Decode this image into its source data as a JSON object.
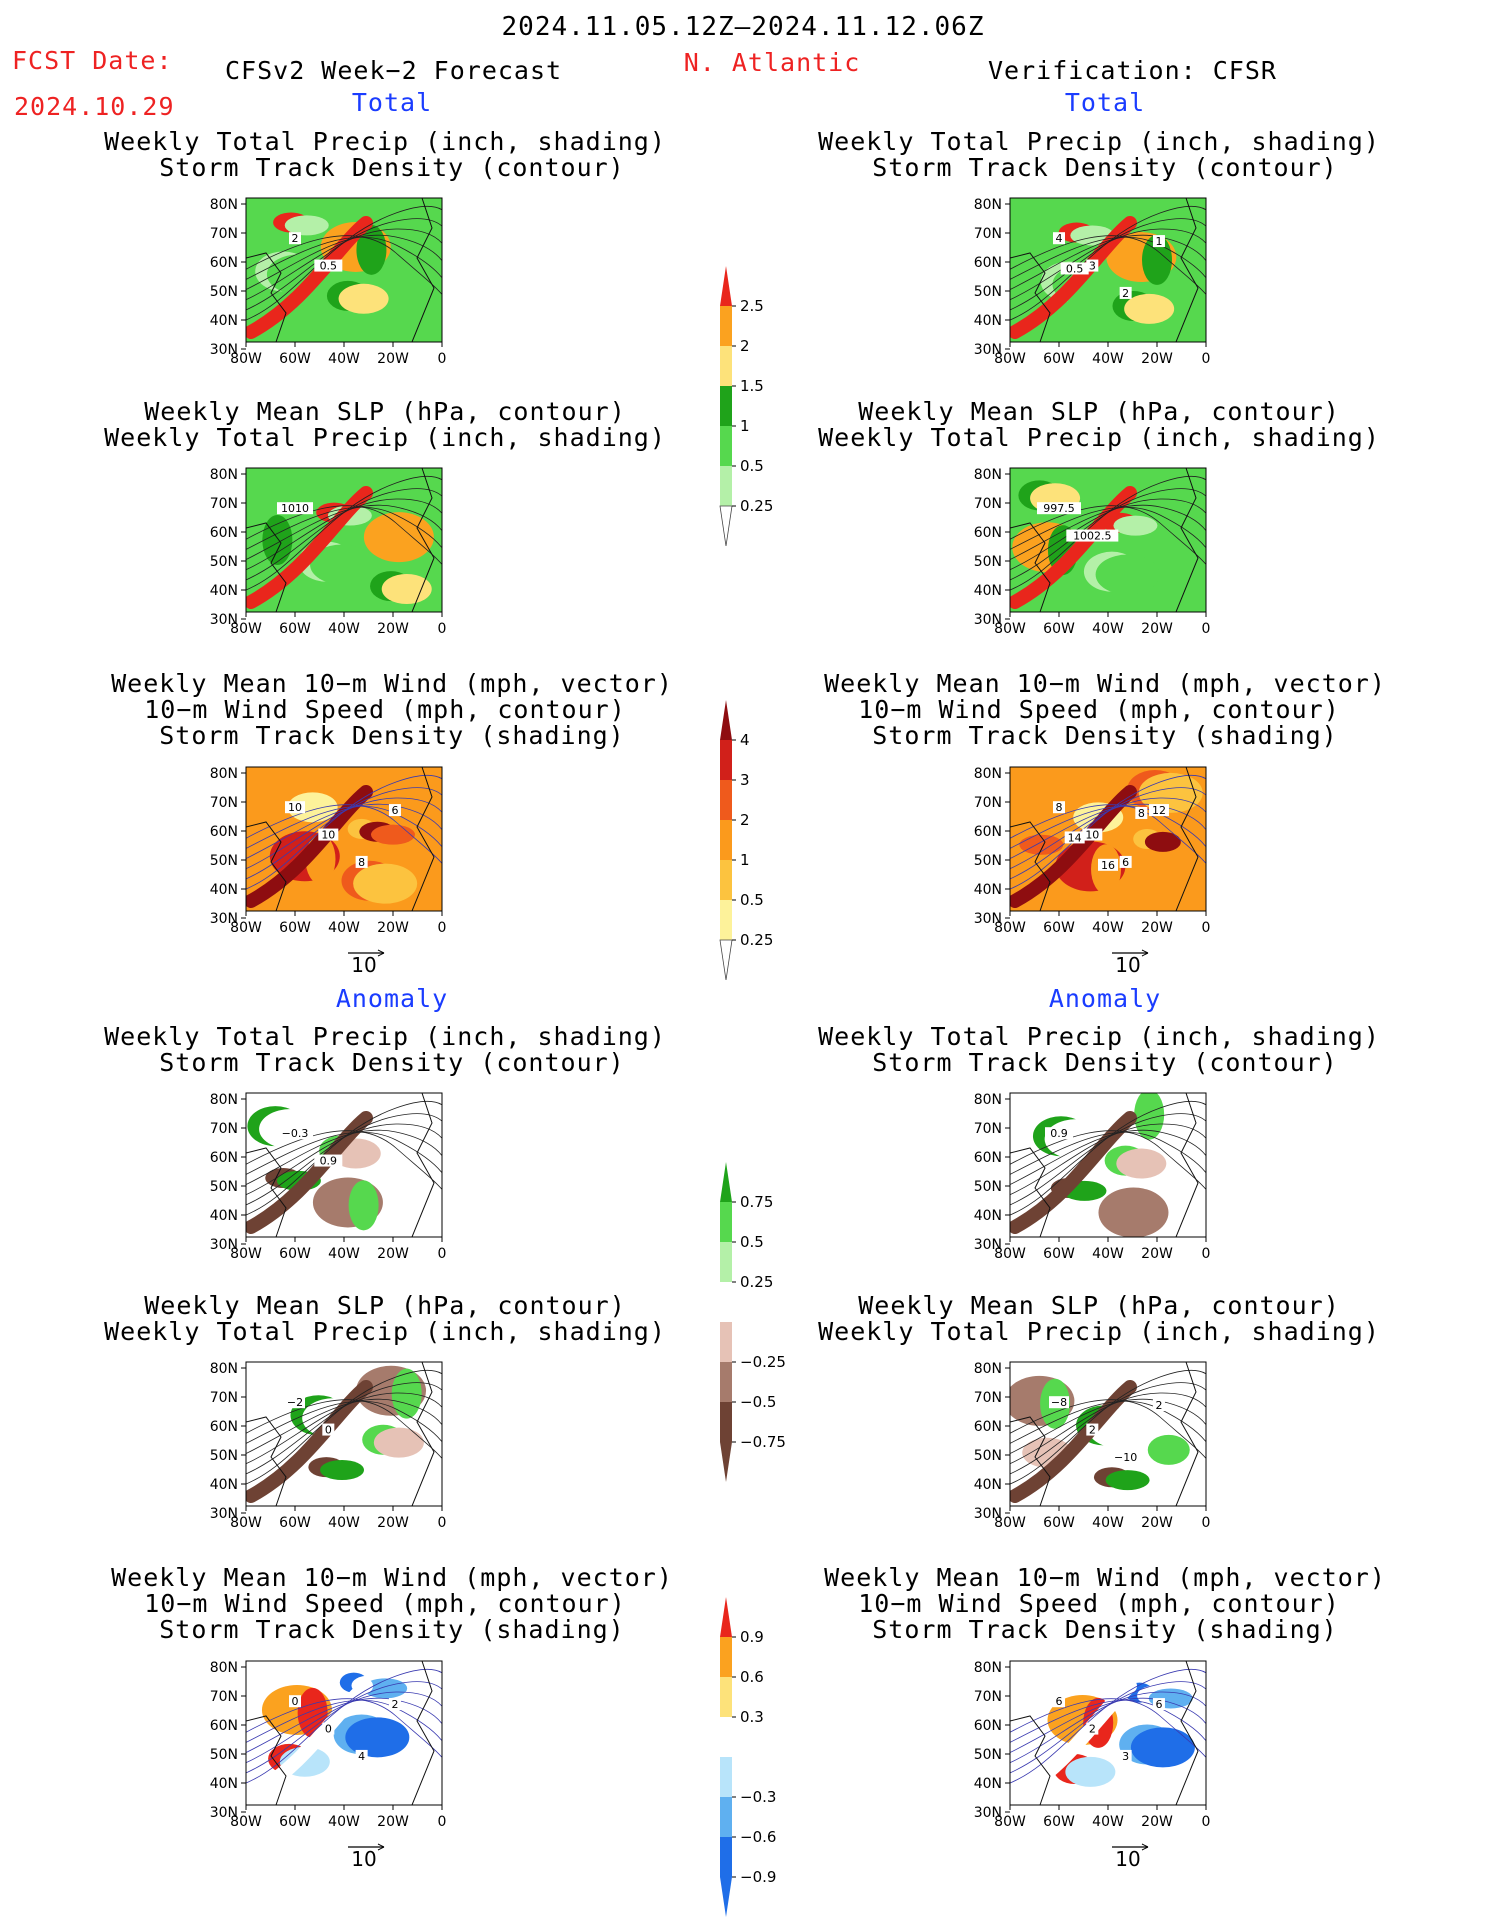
{
  "header": {
    "period": "2024.11.05.12Z–2024.11.12.06Z",
    "fcst_label": "FCST Date:",
    "fcst_date": "2024.10.29",
    "model": "CFSv2 Week−2 Forecast",
    "region": "N. Atlantic",
    "verification": "Verification: CFSR"
  },
  "sections": {
    "total": "Total",
    "anomaly": "Anomaly"
  },
  "panel_titles": {
    "precip_track": [
      "Weekly Total Precip (inch, shading)",
      "Storm Track Density (contour)"
    ],
    "slp_precip": [
      "Weekly Mean SLP (hPa, contour)",
      "Weekly Total Precip (inch, shading)"
    ],
    "wind_track": [
      "Weekly Mean 10−m Wind (mph, vector)",
      "10−m Wind Speed (mph, contour)",
      "Storm Track Density (shading)"
    ]
  },
  "map_axes": {
    "lat_ticks": [
      "80N",
      "70N",
      "60N",
      "50N",
      "40N",
      "30N"
    ],
    "lon_ticks": [
      "80W",
      "60W",
      "40W",
      "20W",
      "0"
    ]
  },
  "vector_ref": "10",
  "colors": {
    "title_red": "#ee2222",
    "section_blue": "#1a3cff",
    "precip_green_light": "#b4f0a8",
    "precip_green": "#56d84e",
    "precip_green_dark": "#1fa31a",
    "precip_yellow": "#fde27a",
    "precip_orange": "#fba21f",
    "precip_red": "#e9261c",
    "anom_brown_dark": "#6e4234",
    "anom_brown": "#a67b6c",
    "anom_brown_light": "#e6c2b6",
    "anom_blue_dark": "#1f6ee8",
    "anom_blue": "#5fb0f0",
    "anom_blue_light": "#b8e4fa"
  },
  "colorbars": [
    {
      "id": "precip_total",
      "labels": [
        "2.5",
        "2",
        "1.5",
        "1",
        "0.5",
        "0.25"
      ],
      "colors": [
        "#e9261c",
        "#fba21f",
        "#fde27a",
        "#1fa31a",
        "#56d84e",
        "#b4f0a8"
      ]
    },
    {
      "id": "track_total",
      "labels": [
        "4",
        "3",
        "2",
        "1",
        "0.5",
        "0.25"
      ],
      "colors": [
        "#8e0d10",
        "#d1201a",
        "#ef5a1c",
        "#fb9a1c",
        "#fcc33f",
        "#fdf29a"
      ]
    },
    {
      "id": "precip_anomaly",
      "labels": [
        "0.75",
        "0.5",
        "0.25",
        "−0.25",
        "−0.5",
        "−0.75"
      ],
      "colors": [
        "#1fa31a",
        "#56d84e",
        "#b4f0a8",
        "#ffffff",
        "#e6c2b6",
        "#a67b6c",
        "#6e4234"
      ]
    },
    {
      "id": "track_anomaly",
      "labels": [
        "0.9",
        "0.6",
        "0.3",
        "−0.3",
        "−0.6",
        "−0.9"
      ],
      "colors": [
        "#e9261c",
        "#fba21f",
        "#fde27a",
        "#ffffff",
        "#b8e4fa",
        "#5fb0f0",
        "#1f6ee8"
      ]
    }
  ],
  "chart_data": [
    {
      "type": "heatmap",
      "panel": "forecast total precip",
      "title": "Weekly Total Precip (inch, shading) / Storm Track Density (contour)",
      "contour_labels": [
        "2",
        "0.5"
      ]
    },
    {
      "type": "heatmap",
      "panel": "verification total precip",
      "title": "Weekly Total Precip (inch, shading) / Storm Track Density (contour)",
      "contour_labels": [
        "4",
        "3",
        "2",
        "1",
        "0.5"
      ]
    },
    {
      "type": "heatmap",
      "panel": "forecast total slp",
      "title": "Weekly Mean SLP (hPa, contour) / Weekly Total Precip (inch, shading)",
      "contour_labels": [
        "1010"
      ]
    },
    {
      "type": "heatmap",
      "panel": "verification total slp",
      "title": "Weekly Mean SLP (hPa, contour) / Weekly Total Precip (inch, shading)",
      "contour_labels": [
        "997.5",
        "1002.5"
      ]
    },
    {
      "type": "heatmap",
      "panel": "forecast total wind",
      "title": "Weekly Mean 10−m Wind (mph, vector) / 10−m Wind Speed (mph, contour) / Storm Track Density (shading)",
      "contour_labels": [
        "10",
        "10",
        "8",
        "6"
      ]
    },
    {
      "type": "heatmap",
      "panel": "verification total wind",
      "title": "Weekly Mean 10−m Wind (mph, vector) / 10−m Wind Speed (mph, contour) / Storm Track Density (shading)",
      "contour_labels": [
        "8",
        "10",
        "6",
        "12",
        "14",
        "16",
        "8"
      ]
    },
    {
      "type": "heatmap",
      "panel": "forecast anomaly precip",
      "title": "Weekly Total Precip (inch, shading) / Storm Track Density (contour)",
      "contour_labels": [
        "−0.3",
        "0.9"
      ]
    },
    {
      "type": "heatmap",
      "panel": "verification anomaly precip",
      "title": "Weekly Total Precip (inch, shading) / Storm Track Density (contour)",
      "contour_labels": [
        "0.9"
      ]
    },
    {
      "type": "heatmap",
      "panel": "forecast anomaly slp",
      "title": "Weekly Mean SLP (hPa, contour) / Weekly Total Precip (inch, shading)",
      "contour_labels": [
        "−2",
        "0"
      ]
    },
    {
      "type": "heatmap",
      "panel": "verification anomaly slp",
      "title": "Weekly Mean SLP (hPa, contour) / Weekly Total Precip (inch, shading)",
      "contour_labels": [
        "−8",
        "2",
        "−10",
        "2"
      ]
    },
    {
      "type": "heatmap",
      "panel": "forecast anomaly wind",
      "title": "Weekly Mean 10−m Wind (mph, vector) / 10−m Wind Speed (mph, contour) / Storm Track Density (shading)",
      "contour_labels": [
        "0",
        "0",
        "4",
        "2"
      ]
    },
    {
      "type": "heatmap",
      "panel": "verification anomaly wind",
      "title": "Weekly Mean 10−m Wind (mph, vector) / 10−m Wind Speed (mph, contour) / Storm Track Density (shading)",
      "contour_labels": [
        "6",
        "2",
        "3",
        "6"
      ]
    }
  ]
}
